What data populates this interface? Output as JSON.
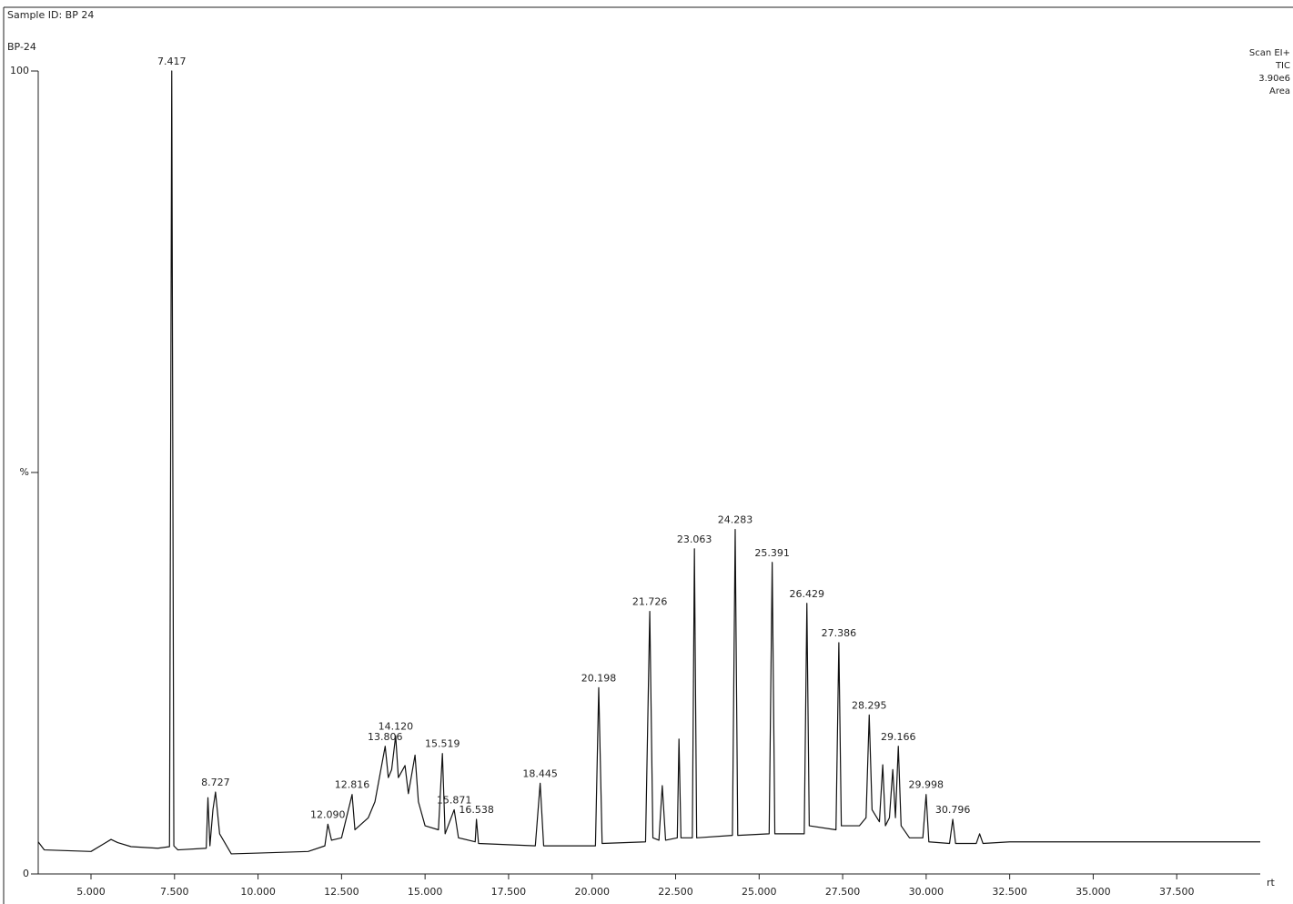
{
  "chart_data": {
    "type": "line",
    "title": "Sample ID: BP 24",
    "subtitle": "BP-24",
    "info": [
      "Scan EI+",
      "TIC",
      "3.90e6",
      "Area"
    ],
    "x_label": "rt",
    "color": "#111111",
    "xlim": [
      3.42,
      40.0
    ],
    "ylim": [
      0,
      100
    ],
    "yticks": [
      0,
      {
        "value": 50,
        "label": "%"
      },
      100
    ],
    "xticks": [
      {
        "value": 5,
        "label": "5.000"
      },
      {
        "value": 7.5,
        "label": "7.500"
      },
      {
        "value": 10,
        "label": "10.000"
      },
      {
        "value": 12.5,
        "label": "12.500"
      },
      {
        "value": 15,
        "label": "15.000"
      },
      {
        "value": 17.5,
        "label": "17.500"
      },
      {
        "value": 20,
        "label": "20.000"
      },
      {
        "value": 22.5,
        "label": "22.500"
      },
      {
        "value": 25,
        "label": "25.000"
      },
      {
        "value": 27.5,
        "label": "27.500"
      },
      {
        "value": 30,
        "label": "30.000"
      },
      {
        "value": 32.5,
        "label": "32.500"
      },
      {
        "value": 35,
        "label": "35.000"
      },
      {
        "value": 37.5,
        "label": "37.500"
      }
    ],
    "x": [
      3.42,
      3.6,
      5.0,
      5.4,
      5.6,
      5.8,
      6.2,
      7.0,
      7.35,
      7.417,
      7.48,
      7.6,
      8.45,
      8.5,
      8.56,
      8.65,
      8.727,
      8.85,
      9.2,
      10.0,
      11.5,
      12.0,
      12.09,
      12.2,
      12.5,
      12.816,
      12.9,
      13.3,
      13.5,
      13.806,
      13.9,
      14.0,
      14.12,
      14.2,
      14.4,
      14.5,
      14.7,
      14.8,
      15.0,
      15.4,
      15.519,
      15.6,
      15.871,
      16.0,
      16.5,
      16.538,
      16.6,
      18.3,
      18.445,
      18.55,
      20.1,
      20.198,
      20.3,
      21.6,
      21.726,
      21.82,
      22.0,
      22.1,
      22.2,
      22.55,
      22.6,
      22.66,
      23.0,
      23.063,
      23.13,
      24.2,
      24.283,
      24.36,
      25.3,
      25.391,
      25.47,
      26.35,
      26.429,
      26.5,
      27.3,
      27.386,
      27.46,
      28.0,
      28.2,
      28.295,
      28.38,
      28.6,
      28.7,
      28.78,
      28.9,
      29.0,
      29.08,
      29.166,
      29.25,
      29.5,
      29.9,
      29.998,
      30.08,
      30.7,
      30.796,
      30.88,
      31.5,
      31.6,
      31.7,
      32.5,
      40.0
    ],
    "values": [
      4.0,
      3.0,
      2.8,
      3.8,
      4.3,
      3.9,
      3.4,
      3.2,
      3.4,
      100,
      3.5,
      3.0,
      3.2,
      9.5,
      3.5,
      8,
      10.2,
      5,
      2.5,
      2.6,
      2.8,
      3.5,
      6.2,
      4.2,
      4.5,
      9.9,
      5.5,
      7,
      9,
      15.9,
      12,
      13,
      17.2,
      12,
      13.5,
      10,
      14.8,
      9,
      6,
      5.5,
      15,
      5,
      8,
      4.5,
      4,
      6.8,
      3.8,
      3.5,
      11.3,
      3.5,
      3.5,
      23.2,
      3.8,
      4,
      32.7,
      4.5,
      4.2,
      11,
      4.2,
      4.5,
      16.8,
      4.5,
      4.5,
      40.5,
      4.5,
      4.8,
      42.9,
      4.8,
      5,
      38.8,
      5,
      5,
      33.7,
      6,
      5.5,
      28.8,
      6,
      6,
      7,
      19.8,
      8,
      6.5,
      13.6,
      6,
      7,
      13,
      7,
      15.9,
      6,
      4.5,
      4.5,
      9.9,
      4,
      3.8,
      6.8,
      3.8,
      3.8,
      5,
      3.8,
      4,
      4
    ],
    "annotations": [
      {
        "x": 7.417,
        "y": 100,
        "label": "7.417"
      },
      {
        "x": 8.727,
        "y": 10.2,
        "label": "8.727"
      },
      {
        "x": 12.09,
        "y": 6.2,
        "label": "12.090"
      },
      {
        "x": 12.816,
        "y": 9.9,
        "label": "12.816"
      },
      {
        "x": 13.806,
        "y": 15.9,
        "label": "13.806"
      },
      {
        "x": 14.12,
        "y": 17.2,
        "label": "14.120"
      },
      {
        "x": 15.519,
        "y": 15,
        "label": "15.519"
      },
      {
        "x": 15.871,
        "y": 8,
        "label": "15.871"
      },
      {
        "x": 16.538,
        "y": 6.8,
        "label": "16.538"
      },
      {
        "x": 18.445,
        "y": 11.3,
        "label": "18.445"
      },
      {
        "x": 20.198,
        "y": 23.2,
        "label": "20.198"
      },
      {
        "x": 21.726,
        "y": 32.7,
        "label": "21.726"
      },
      {
        "x": 23.063,
        "y": 40.5,
        "label": "23.063"
      },
      {
        "x": 24.283,
        "y": 42.9,
        "label": "24.283"
      },
      {
        "x": 25.391,
        "y": 38.8,
        "label": "25.391"
      },
      {
        "x": 26.429,
        "y": 33.7,
        "label": "26.429"
      },
      {
        "x": 27.386,
        "y": 28.8,
        "label": "27.386"
      },
      {
        "x": 28.295,
        "y": 19.8,
        "label": "28.295"
      },
      {
        "x": 29.166,
        "y": 15.9,
        "label": "29.166"
      },
      {
        "x": 29.998,
        "y": 9.9,
        "label": "29.998"
      },
      {
        "x": 30.796,
        "y": 6.8,
        "label": "30.796"
      }
    ]
  }
}
